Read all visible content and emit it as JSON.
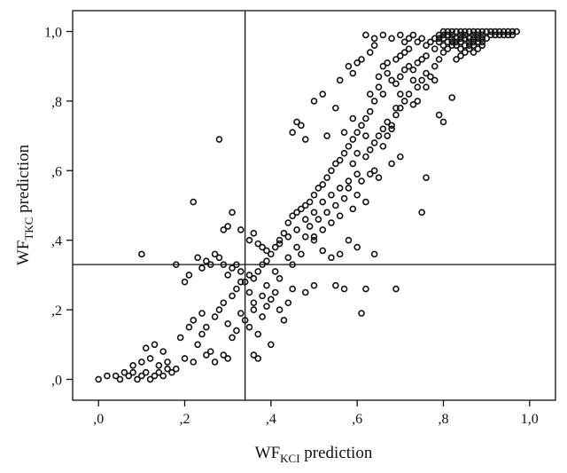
{
  "chart_data": {
    "type": "scatter",
    "xlabel": {
      "main": "WF",
      "sub": "KCI",
      "suffix": " prediction"
    },
    "ylabel": {
      "main": "WF",
      "sub": "TKC",
      "suffix": " prediction"
    },
    "xlim": [
      -0.06,
      1.06
    ],
    "ylim": [
      -0.06,
      1.06
    ],
    "x_ticks": [
      0.0,
      0.2,
      0.4,
      0.6,
      0.8,
      1.0
    ],
    "x_tick_labels": [
      ",0",
      ",2",
      ",4",
      ",6",
      ",8",
      "1,0"
    ],
    "y_ticks": [
      0.0,
      0.2,
      0.4,
      0.6,
      0.8,
      1.0
    ],
    "y_tick_labels": [
      ",0",
      ",2",
      ",4",
      ",6",
      ",8",
      "1,0"
    ],
    "reference_lines": {
      "x": 0.34,
      "y": 0.33
    },
    "grid": false,
    "marker": "open-circle",
    "points": [
      [
        0.0,
        0.0
      ],
      [
        0.02,
        0.01
      ],
      [
        0.04,
        0.01
      ],
      [
        0.05,
        0.0
      ],
      [
        0.06,
        0.02
      ],
      [
        0.07,
        0.01
      ],
      [
        0.08,
        0.02
      ],
      [
        0.09,
        0.0
      ],
      [
        0.1,
        0.01
      ],
      [
        0.11,
        0.02
      ],
      [
        0.12,
        0.0
      ],
      [
        0.13,
        0.01
      ],
      [
        0.14,
        0.02
      ],
      [
        0.15,
        0.01
      ],
      [
        0.16,
        0.03
      ],
      [
        0.17,
        0.02
      ],
      [
        0.08,
        0.04
      ],
      [
        0.1,
        0.05
      ],
      [
        0.12,
        0.06
      ],
      [
        0.14,
        0.04
      ],
      [
        0.16,
        0.05
      ],
      [
        0.18,
        0.03
      ],
      [
        0.2,
        0.06
      ],
      [
        0.22,
        0.05
      ],
      [
        0.11,
        0.09
      ],
      [
        0.13,
        0.1
      ],
      [
        0.15,
        0.08
      ],
      [
        0.19,
        0.12
      ],
      [
        0.21,
        0.15
      ],
      [
        0.23,
        0.1
      ],
      [
        0.24,
        0.13
      ],
      [
        0.25,
        0.07
      ],
      [
        0.26,
        0.08
      ],
      [
        0.27,
        0.05
      ],
      [
        0.29,
        0.07
      ],
      [
        0.3,
        0.06
      ],
      [
        0.22,
        0.17
      ],
      [
        0.24,
        0.19
      ],
      [
        0.25,
        0.15
      ],
      [
        0.27,
        0.18
      ],
      [
        0.28,
        0.2
      ],
      [
        0.29,
        0.22
      ],
      [
        0.3,
        0.16
      ],
      [
        0.31,
        0.12
      ],
      [
        0.32,
        0.14
      ],
      [
        0.33,
        0.19
      ],
      [
        0.34,
        0.17
      ],
      [
        0.35,
        0.15
      ],
      [
        0.36,
        0.2
      ],
      [
        0.37,
        0.13
      ],
      [
        0.38,
        0.18
      ],
      [
        0.39,
        0.21
      ],
      [
        0.4,
        0.1
      ],
      [
        0.36,
        0.07
      ],
      [
        0.37,
        0.06
      ],
      [
        0.31,
        0.24
      ],
      [
        0.32,
        0.26
      ],
      [
        0.33,
        0.28
      ],
      [
        0.35,
        0.25
      ],
      [
        0.36,
        0.22
      ],
      [
        0.38,
        0.24
      ],
      [
        0.39,
        0.27
      ],
      [
        0.4,
        0.23
      ],
      [
        0.41,
        0.25
      ],
      [
        0.42,
        0.2
      ],
      [
        0.43,
        0.17
      ],
      [
        0.44,
        0.22
      ],
      [
        0.45,
        0.26
      ],
      [
        0.41,
        0.31
      ],
      [
        0.42,
        0.29
      ],
      [
        0.44,
        0.35
      ],
      [
        0.45,
        0.33
      ],
      [
        0.46,
        0.38
      ],
      [
        0.47,
        0.36
      ],
      [
        0.48,
        0.41
      ],
      [
        0.49,
        0.44
      ],
      [
        0.5,
        0.4
      ],
      [
        0.51,
        0.46
      ],
      [
        0.52,
        0.43
      ],
      [
        0.53,
        0.48
      ],
      [
        0.54,
        0.45
      ],
      [
        0.55,
        0.5
      ],
      [
        0.56,
        0.47
      ],
      [
        0.57,
        0.52
      ],
      [
        0.58,
        0.55
      ],
      [
        0.59,
        0.49
      ],
      [
        0.6,
        0.53
      ],
      [
        0.61,
        0.57
      ],
      [
        0.62,
        0.51
      ],
      [
        0.63,
        0.59
      ],
      [
        0.64,
        0.6
      ],
      [
        0.65,
        0.58
      ],
      [
        0.62,
        0.64
      ],
      [
        0.63,
        0.66
      ],
      [
        0.64,
        0.68
      ],
      [
        0.65,
        0.7
      ],
      [
        0.66,
        0.72
      ],
      [
        0.67,
        0.74
      ],
      [
        0.68,
        0.73
      ],
      [
        0.69,
        0.76
      ],
      [
        0.7,
        0.78
      ],
      [
        0.71,
        0.8
      ],
      [
        0.72,
        0.82
      ],
      [
        0.73,
        0.79
      ],
      [
        0.74,
        0.84
      ],
      [
        0.75,
        0.86
      ],
      [
        0.76,
        0.88
      ],
      [
        0.77,
        0.87
      ],
      [
        0.78,
        0.9
      ],
      [
        0.79,
        0.92
      ],
      [
        0.8,
        0.94
      ],
      [
        0.81,
        0.95
      ],
      [
        0.82,
        0.96
      ],
      [
        0.83,
        0.97
      ],
      [
        0.84,
        0.97
      ],
      [
        0.85,
        0.98
      ],
      [
        0.86,
        0.98
      ],
      [
        0.87,
        0.99
      ],
      [
        0.88,
        0.99
      ],
      [
        0.89,
        0.99
      ],
      [
        0.9,
        1.0
      ],
      [
        0.91,
        1.0
      ],
      [
        0.92,
        1.0
      ],
      [
        0.93,
        1.0
      ],
      [
        0.94,
        1.0
      ],
      [
        0.95,
        1.0
      ],
      [
        0.96,
        1.0
      ],
      [
        0.97,
        1.0
      ],
      [
        0.78,
        0.95
      ],
      [
        0.79,
        0.97
      ],
      [
        0.8,
        0.98
      ],
      [
        0.81,
        0.99
      ],
      [
        0.82,
        0.99
      ],
      [
        0.83,
        1.0
      ],
      [
        0.84,
        0.99
      ],
      [
        0.85,
        0.99
      ],
      [
        0.86,
        1.0
      ],
      [
        0.87,
        0.98
      ],
      [
        0.88,
        0.97
      ],
      [
        0.8,
        0.96
      ],
      [
        0.81,
        0.97
      ],
      [
        0.82,
        0.98
      ],
      [
        0.83,
        0.96
      ],
      [
        0.84,
        0.95
      ],
      [
        0.85,
        0.96
      ],
      [
        0.86,
        0.97
      ],
      [
        0.87,
        0.96
      ],
      [
        0.88,
        0.98
      ],
      [
        0.89,
        0.97
      ],
      [
        0.76,
        0.96
      ],
      [
        0.77,
        0.97
      ],
      [
        0.78,
        0.98
      ],
      [
        0.79,
        0.99
      ],
      [
        0.74,
        0.97
      ],
      [
        0.75,
        0.98
      ],
      [
        0.72,
        0.98
      ],
      [
        0.73,
        0.99
      ],
      [
        0.7,
        0.99
      ],
      [
        0.71,
        0.97
      ],
      [
        0.68,
        0.98
      ],
      [
        0.66,
        0.99
      ],
      [
        0.64,
        0.98
      ],
      [
        0.62,
        0.99
      ],
      [
        0.63,
        0.94
      ],
      [
        0.64,
        0.96
      ],
      [
        0.6,
        0.91
      ],
      [
        0.61,
        0.92
      ],
      [
        0.58,
        0.9
      ],
      [
        0.59,
        0.88
      ],
      [
        0.66,
        0.9
      ],
      [
        0.67,
        0.88
      ],
      [
        0.68,
        0.86
      ],
      [
        0.69,
        0.85
      ],
      [
        0.7,
        0.87
      ],
      [
        0.72,
        0.9
      ],
      [
        0.73,
        0.89
      ],
      [
        0.74,
        0.91
      ],
      [
        0.75,
        0.92
      ],
      [
        0.76,
        0.93
      ],
      [
        0.7,
        0.93
      ],
      [
        0.71,
        0.94
      ],
      [
        0.72,
        0.95
      ],
      [
        0.65,
        0.84
      ],
      [
        0.66,
        0.82
      ],
      [
        0.64,
        0.8
      ],
      [
        0.63,
        0.77
      ],
      [
        0.62,
        0.75
      ],
      [
        0.61,
        0.73
      ],
      [
        0.6,
        0.71
      ],
      [
        0.59,
        0.69
      ],
      [
        0.58,
        0.67
      ],
      [
        0.57,
        0.65
      ],
      [
        0.56,
        0.63
      ],
      [
        0.55,
        0.62
      ],
      [
        0.54,
        0.6
      ],
      [
        0.53,
        0.58
      ],
      [
        0.52,
        0.56
      ],
      [
        0.51,
        0.55
      ],
      [
        0.5,
        0.53
      ],
      [
        0.49,
        0.51
      ],
      [
        0.48,
        0.5
      ],
      [
        0.47,
        0.49
      ],
      [
        0.46,
        0.48
      ],
      [
        0.45,
        0.47
      ],
      [
        0.44,
        0.45
      ],
      [
        0.43,
        0.42
      ],
      [
        0.42,
        0.4
      ],
      [
        0.41,
        0.38
      ],
      [
        0.4,
        0.36
      ],
      [
        0.39,
        0.34
      ],
      [
        0.38,
        0.33
      ],
      [
        0.37,
        0.31
      ],
      [
        0.36,
        0.29
      ],
      [
        0.35,
        0.3
      ],
      [
        0.34,
        0.28
      ],
      [
        0.33,
        0.31
      ],
      [
        0.32,
        0.33
      ],
      [
        0.31,
        0.32
      ],
      [
        0.3,
        0.3
      ],
      [
        0.29,
        0.33
      ],
      [
        0.28,
        0.35
      ],
      [
        0.27,
        0.36
      ],
      [
        0.26,
        0.33
      ],
      [
        0.25,
        0.34
      ],
      [
        0.24,
        0.32
      ],
      [
        0.23,
        0.35
      ],
      [
        0.21,
        0.3
      ],
      [
        0.2,
        0.28
      ],
      [
        0.18,
        0.33
      ],
      [
        0.1,
        0.36
      ],
      [
        0.22,
        0.51
      ],
      [
        0.28,
        0.69
      ],
      [
        0.29,
        0.43
      ],
      [
        0.3,
        0.44
      ],
      [
        0.31,
        0.48
      ],
      [
        0.33,
        0.43
      ],
      [
        0.35,
        0.4
      ],
      [
        0.36,
        0.42
      ],
      [
        0.37,
        0.39
      ],
      [
        0.38,
        0.38
      ],
      [
        0.39,
        0.37
      ],
      [
        0.48,
        0.25
      ],
      [
        0.5,
        0.27
      ],
      [
        0.55,
        0.27
      ],
      [
        0.57,
        0.26
      ],
      [
        0.61,
        0.19
      ],
      [
        0.62,
        0.26
      ],
      [
        0.69,
        0.26
      ],
      [
        0.75,
        0.48
      ],
      [
        0.76,
        0.58
      ],
      [
        0.64,
        0.36
      ],
      [
        0.6,
        0.38
      ],
      [
        0.58,
        0.4
      ],
      [
        0.56,
        0.36
      ],
      [
        0.54,
        0.35
      ],
      [
        0.52,
        0.37
      ],
      [
        0.5,
        0.41
      ],
      [
        0.53,
        0.7
      ],
      [
        0.55,
        0.78
      ],
      [
        0.56,
        0.86
      ],
      [
        0.52,
        0.82
      ],
      [
        0.5,
        0.8
      ],
      [
        0.47,
        0.73
      ],
      [
        0.45,
        0.71
      ],
      [
        0.46,
        0.74
      ],
      [
        0.48,
        0.69
      ],
      [
        0.57,
        0.71
      ],
      [
        0.59,
        0.75
      ],
      [
        0.63,
        0.82
      ],
      [
        0.65,
        0.87
      ],
      [
        0.67,
        0.91
      ],
      [
        0.69,
        0.92
      ],
      [
        0.71,
        0.89
      ],
      [
        0.73,
        0.86
      ],
      [
        0.74,
        0.8
      ],
      [
        0.76,
        0.84
      ],
      [
        0.78,
        0.86
      ],
      [
        0.79,
        0.76
      ],
      [
        0.8,
        0.74
      ],
      [
        0.82,
        0.81
      ],
      [
        0.83,
        0.92
      ],
      [
        0.84,
        0.93
      ],
      [
        0.85,
        0.94
      ],
      [
        0.86,
        0.95
      ],
      [
        0.87,
        0.94
      ],
      [
        0.88,
        0.95
      ],
      [
        0.89,
        0.96
      ],
      [
        0.9,
        0.98
      ],
      [
        0.91,
        0.99
      ],
      [
        0.92,
        0.99
      ],
      [
        0.93,
        0.99
      ],
      [
        0.94,
        0.99
      ],
      [
        0.95,
        0.99
      ],
      [
        0.96,
        0.99
      ],
      [
        0.8,
        1.0
      ],
      [
        0.81,
        1.0
      ],
      [
        0.82,
        1.0
      ],
      [
        0.84,
        1.0
      ],
      [
        0.85,
        1.0
      ],
      [
        0.87,
        1.0
      ],
      [
        0.88,
        1.0
      ],
      [
        0.89,
        1.0
      ],
      [
        0.79,
        0.98
      ],
      [
        0.8,
        0.99
      ],
      [
        0.82,
        0.97
      ],
      [
        0.83,
        0.98
      ],
      [
        0.84,
        0.98
      ],
      [
        0.86,
        0.96
      ],
      [
        0.87,
        0.97
      ],
      [
        0.89,
        0.98
      ],
      [
        0.6,
        0.59
      ],
      [
        0.58,
        0.57
      ],
      [
        0.56,
        0.55
      ],
      [
        0.54,
        0.53
      ],
      [
        0.52,
        0.51
      ],
      [
        0.5,
        0.48
      ],
      [
        0.48,
        0.46
      ],
      [
        0.46,
        0.43
      ],
      [
        0.44,
        0.41
      ],
      [
        0.42,
        0.39
      ],
      [
        0.7,
        0.64
      ],
      [
        0.68,
        0.62
      ],
      [
        0.66,
        0.67
      ],
      [
        0.67,
        0.7
      ],
      [
        0.68,
        0.72
      ],
      [
        0.69,
        0.78
      ],
      [
        0.7,
        0.82
      ],
      [
        0.62,
        0.7
      ],
      [
        0.6,
        0.65
      ],
      [
        0.59,
        0.62
      ]
    ]
  }
}
